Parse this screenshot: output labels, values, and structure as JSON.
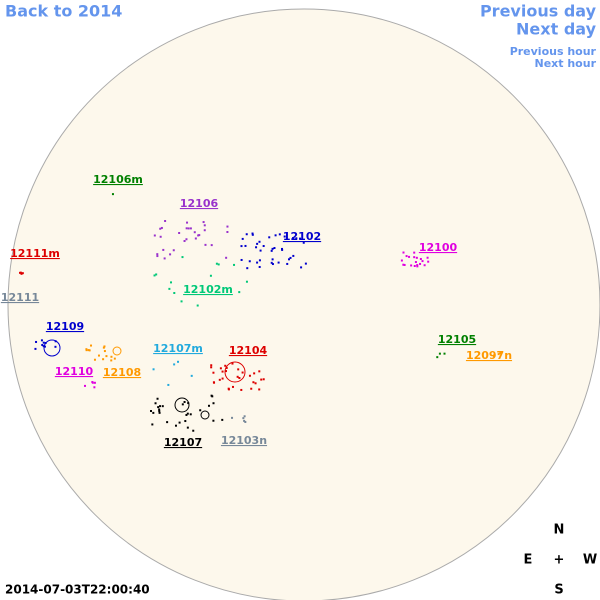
{
  "nav": {
    "back": "Back to 2014",
    "previous_day": "Previous day",
    "next_day": "Next day",
    "previous_hour": "Previous hour",
    "next_hour": "Next hour"
  },
  "regions": [
    {
      "label": "12106m",
      "color": "#008000"
    },
    {
      "label": "12106",
      "color": "#9932cc"
    },
    {
      "label": "12102",
      "color": "#0000cd"
    },
    {
      "label": "12100",
      "color": "#e000e0"
    },
    {
      "label": "12111m",
      "color": "#dd0000"
    },
    {
      "label": "12111",
      "color": "#778899"
    },
    {
      "label": "12102m",
      "color": "#00c878"
    },
    {
      "label": "12109",
      "color": "#0000cd"
    },
    {
      "label": "12105",
      "color": "#008000"
    },
    {
      "label": "12104",
      "color": "#dd0000"
    },
    {
      "label": "12107m",
      "color": "#22aadd"
    },
    {
      "label": "12097n",
      "color": "#ff9900"
    },
    {
      "label": "12110",
      "color": "#e000e0"
    },
    {
      "label": "12108",
      "color": "#ff9900"
    },
    {
      "label": "12107",
      "color": "#000000"
    },
    {
      "label": "12103n",
      "color": "#778899"
    }
  ],
  "compass": {
    "north": "N",
    "east": "E",
    "center": "+",
    "west": "W",
    "south": "S"
  },
  "timestamp": "2014-07-03T22:00:40"
}
